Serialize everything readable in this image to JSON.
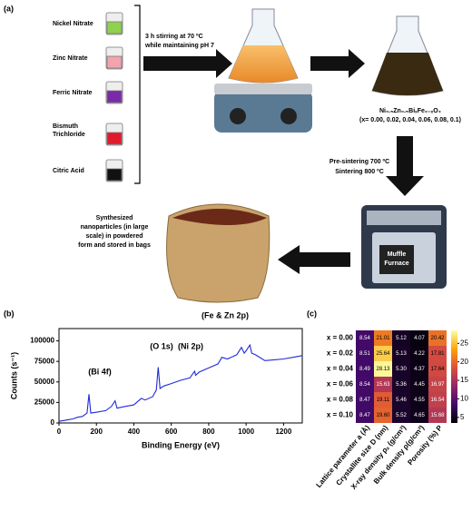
{
  "panel_a": {
    "label": "(a)",
    "reagents": [
      "Nickel Nitrate",
      "Zinc Nitrate",
      "Ferric Nitrate",
      [
        "Bismuth",
        "Trichloride"
      ],
      "Citric Acid"
    ],
    "stirring": [
      "3 h stirring at 70 ºC",
      "while maintaining pH 7"
    ],
    "formula": "Ni₀.₅Zn₀.₅BiₓFe₂₋ₓO₄",
    "x_values": "(x= 0.00, 0.02, 0.04, 0.06, 0.08, 0.1)",
    "sintering": [
      "Pre-sintering 700 ºC",
      "Sintering 800 ºC"
    ],
    "furnace": [
      "Muffle",
      "Furnace"
    ],
    "product": [
      "Synthesized",
      "nanoparticles (in large",
      "scale)  in powdered",
      "form and stored in bags"
    ]
  },
  "chart_data": [
    {
      "type": "line",
      "panel_label": "(b)",
      "color": "#1f2bd6",
      "x_label": "Binding Energy (eV)",
      "y_label": "Counts (s⁻¹)",
      "x": [
        0,
        25,
        50,
        75,
        100,
        125,
        150,
        160,
        170,
        200,
        250,
        280,
        300,
        310,
        350,
        400,
        440,
        460,
        500,
        520,
        530,
        540,
        560,
        600,
        650,
        700,
        715,
        725,
        730,
        750,
        800,
        850,
        870,
        900,
        950,
        975,
        990,
        1000,
        1020,
        1030,
        1050,
        1100,
        1150,
        1200,
        1250,
        1300
      ],
      "values": [
        2000,
        3000,
        4000,
        5000,
        7000,
        8000,
        12000,
        35000,
        12000,
        13000,
        15000,
        20000,
        27000,
        18000,
        20000,
        22000,
        30000,
        28000,
        32000,
        40000,
        68000,
        42000,
        45000,
        48000,
        52000,
        55000,
        60000,
        63000,
        58000,
        62000,
        67000,
        72000,
        80000,
        78000,
        83000,
        92000,
        85000,
        88000,
        95000,
        85000,
        83000,
        76000,
        77000,
        78000,
        80000,
        82000
      ],
      "xlim": [
        0,
        1300
      ],
      "xticks": [
        0,
        200,
        400,
        600,
        800,
        1000,
        1200
      ],
      "ylim": [
        0,
        115000
      ],
      "yticks": [
        0,
        25000,
        50000,
        75000,
        100000
      ],
      "annotations": [
        "(Bi 4f)",
        "(O 1s)",
        "(Ni 2p)",
        "(Fe & Zn 2p)"
      ]
    },
    {
      "type": "heatmap",
      "panel_label": "(c)",
      "x_categories": [
        "Lattice parameter a (Å)",
        "Crystallite size D (nm)",
        "X-ray density ρₓ (g/cm³)",
        "Bulk density ρ(g/cm³)",
        "Porosity (%) P"
      ],
      "y_categories": [
        "x = 0.00",
        "x = 0.02",
        "x = 0.04",
        "x = 0.06",
        "x = 0.08",
        "x = 0.10"
      ],
      "values": [
        [
          8.54,
          21.01,
          5.12,
          4.07,
          20.42
        ],
        [
          8.51,
          25.64,
          5.13,
          4.22,
          17.81
        ],
        [
          8.49,
          28.13,
          5.3,
          4.37,
          17.64
        ],
        [
          8.54,
          15.63,
          5.36,
          4.45,
          16.97
        ],
        [
          8.47,
          19.11,
          5.46,
          4.55,
          16.54
        ],
        [
          8.47,
          19.6,
          5.52,
          4.65,
          15.68
        ]
      ],
      "value_labels": [
        [
          "8.54",
          "21.01",
          "5.12",
          "4.07",
          "20.42"
        ],
        [
          "8.51",
          "25.64",
          "5.13",
          "4.22",
          "17.81"
        ],
        [
          "8.49",
          "28.13",
          "5.30",
          "4.37",
          "17.64"
        ],
        [
          "8.54",
          "15.63",
          "5.36",
          "4.45",
          "16.97"
        ],
        [
          "8.47",
          "19.11",
          "5.46",
          "4.55",
          "16.54"
        ],
        [
          "8.47",
          "19.60",
          "5.52",
          "4.65",
          "15.68"
        ]
      ],
      "colormap": [
        "#000004",
        "#420a68",
        "#932667",
        "#dd513a",
        "#fca50a",
        "#fcffa4"
      ],
      "clim": [
        3.5,
        28.5
      ],
      "cticks": [
        5,
        10,
        15,
        20,
        25
      ]
    }
  ]
}
